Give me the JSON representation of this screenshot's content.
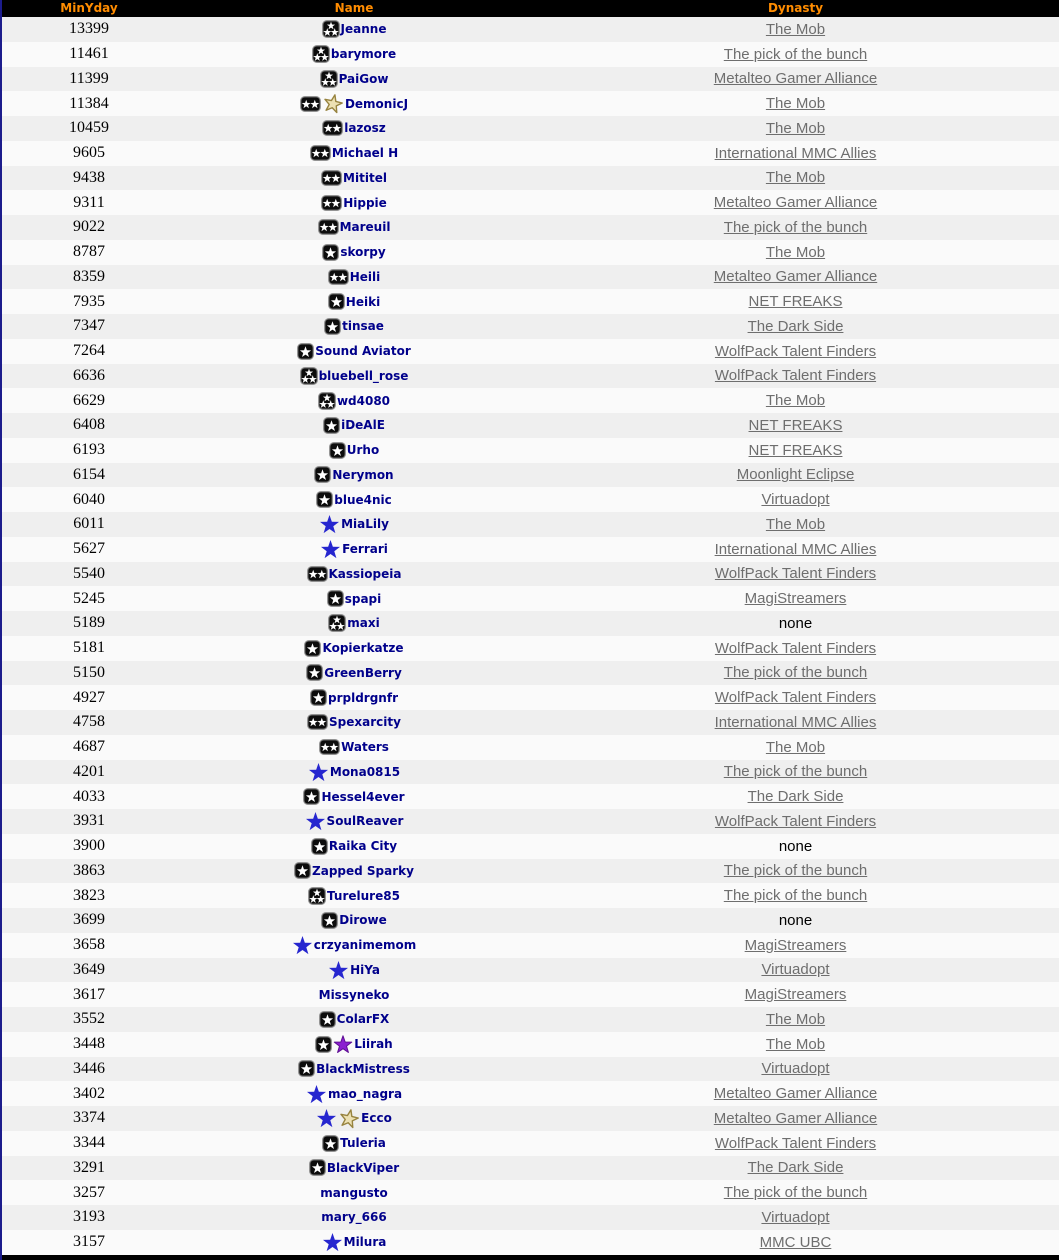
{
  "colors": {
    "page_border": "#1c1c8c",
    "header_bg": "#000000",
    "header_text": "#ff8c00",
    "row_odd": "#efefef",
    "row_even": "#fafafa",
    "name_link": "#00008b",
    "dynasty_link": "#6e6e6e",
    "none_text": "#000000",
    "badge_bg": "#0c0c0c",
    "badge_border": "#858585",
    "star_white": "#ffffff",
    "star_blue": "#2626cf",
    "star_gold_fill": "#ece0b2",
    "star_gold_stroke": "#97833f",
    "star_purple": "#8a1fd0"
  },
  "header": {
    "columns": [
      "MinYday",
      "Name",
      "Dynasty"
    ]
  },
  "rows": [
    {
      "minyday": "13399",
      "name": "Jeanne",
      "icons": [
        "badge-3-star"
      ],
      "dynasty": "The Mob",
      "dynasty_is_link": true
    },
    {
      "minyday": "11461",
      "name": "barymore",
      "icons": [
        "badge-3-star"
      ],
      "dynasty": "The pick of the bunch",
      "dynasty_is_link": true
    },
    {
      "minyday": "11399",
      "name": "PaiGow",
      "icons": [
        "badge-3-star"
      ],
      "dynasty": "Metalteo Gamer Alliance",
      "dynasty_is_link": true
    },
    {
      "minyday": "11384",
      "name": "DemonicJ",
      "icons": [
        "badge-2-star",
        "gold-star"
      ],
      "dynasty": "The Mob",
      "dynasty_is_link": true
    },
    {
      "minyday": "10459",
      "name": "lazosz",
      "icons": [
        "badge-2-star"
      ],
      "dynasty": "The Mob",
      "dynasty_is_link": true
    },
    {
      "minyday": "9605",
      "name": "Michael H",
      "icons": [
        "badge-2-star"
      ],
      "dynasty": "International MMC Allies",
      "dynasty_is_link": true
    },
    {
      "minyday": "9438",
      "name": "Mititel",
      "icons": [
        "badge-2-star"
      ],
      "dynasty": "The Mob",
      "dynasty_is_link": true
    },
    {
      "minyday": "9311",
      "name": "Hippie",
      "icons": [
        "badge-2-star"
      ],
      "dynasty": "Metalteo Gamer Alliance",
      "dynasty_is_link": true
    },
    {
      "minyday": "9022",
      "name": "Mareuil",
      "icons": [
        "badge-2-star"
      ],
      "dynasty": "The pick of the bunch",
      "dynasty_is_link": true
    },
    {
      "minyday": "8787",
      "name": "skorpy",
      "icons": [
        "badge-1-star"
      ],
      "dynasty": "The Mob",
      "dynasty_is_link": true
    },
    {
      "minyday": "8359",
      "name": "Heili",
      "icons": [
        "badge-2-star"
      ],
      "dynasty": "Metalteo Gamer Alliance",
      "dynasty_is_link": true
    },
    {
      "minyday": "7935",
      "name": "Heiki",
      "icons": [
        "badge-1-star"
      ],
      "dynasty": "NET FREAKS",
      "dynasty_is_link": true
    },
    {
      "minyday": "7347",
      "name": "tinsae",
      "icons": [
        "badge-1-star"
      ],
      "dynasty": "The Dark Side",
      "dynasty_is_link": true
    },
    {
      "minyday": "7264",
      "name": "Sound Aviator",
      "icons": [
        "badge-1-star"
      ],
      "dynasty": "WolfPack Talent Finders",
      "dynasty_is_link": true
    },
    {
      "minyday": "6636",
      "name": "bluebell_rose",
      "icons": [
        "badge-3-star"
      ],
      "dynasty": "WolfPack Talent Finders",
      "dynasty_is_link": true
    },
    {
      "minyday": "6629",
      "name": "wd4080",
      "icons": [
        "badge-3-star"
      ],
      "dynasty": "The Mob",
      "dynasty_is_link": true
    },
    {
      "minyday": "6408",
      "name": "iDeAlE",
      "icons": [
        "badge-1-star"
      ],
      "dynasty": "NET FREAKS",
      "dynasty_is_link": true
    },
    {
      "minyday": "6193",
      "name": "Urho",
      "icons": [
        "badge-1-star"
      ],
      "dynasty": "NET FREAKS",
      "dynasty_is_link": true
    },
    {
      "minyday": "6154",
      "name": "Nerymon",
      "icons": [
        "badge-1-star"
      ],
      "dynasty": "Moonlight Eclipse",
      "dynasty_is_link": true
    },
    {
      "minyday": "6040",
      "name": "blue4nic",
      "icons": [
        "badge-1-star"
      ],
      "dynasty": "Virtuadopt",
      "dynasty_is_link": true
    },
    {
      "minyday": "6011",
      "name": "MiaLily",
      "icons": [
        "blue-star"
      ],
      "dynasty": "The Mob",
      "dynasty_is_link": true
    },
    {
      "minyday": "5627",
      "name": "Ferrari",
      "icons": [
        "blue-star"
      ],
      "dynasty": "International MMC Allies",
      "dynasty_is_link": true
    },
    {
      "minyday": "5540",
      "name": "Kassiopeia",
      "icons": [
        "badge-2-star"
      ],
      "dynasty": "WolfPack Talent Finders",
      "dynasty_is_link": true
    },
    {
      "minyday": "5245",
      "name": "spapi",
      "icons": [
        "badge-1-star"
      ],
      "dynasty": "MagiStreamers",
      "dynasty_is_link": true
    },
    {
      "minyday": "5189",
      "name": "maxi",
      "icons": [
        "badge-3-star"
      ],
      "dynasty": "none",
      "dynasty_is_link": false
    },
    {
      "minyday": "5181",
      "name": "Kopierkatze",
      "icons": [
        "badge-1-star"
      ],
      "dynasty": "WolfPack Talent Finders",
      "dynasty_is_link": true
    },
    {
      "minyday": "5150",
      "name": "GreenBerry",
      "icons": [
        "badge-1-star"
      ],
      "dynasty": "The pick of the bunch",
      "dynasty_is_link": true
    },
    {
      "minyday": "4927",
      "name": "prpldrgnfr",
      "icons": [
        "badge-1-star"
      ],
      "dynasty": "WolfPack Talent Finders",
      "dynasty_is_link": true
    },
    {
      "minyday": "4758",
      "name": "Spexarcity",
      "icons": [
        "badge-2-star"
      ],
      "dynasty": "International MMC Allies",
      "dynasty_is_link": true
    },
    {
      "minyday": "4687",
      "name": "Waters",
      "icons": [
        "badge-2-star"
      ],
      "dynasty": "The Mob",
      "dynasty_is_link": true
    },
    {
      "minyday": "4201",
      "name": "Mona0815",
      "icons": [
        "blue-star"
      ],
      "dynasty": "The pick of the bunch",
      "dynasty_is_link": true
    },
    {
      "minyday": "4033",
      "name": "Hessel4ever",
      "icons": [
        "badge-1-star"
      ],
      "dynasty": "The Dark Side",
      "dynasty_is_link": true
    },
    {
      "minyday": "3931",
      "name": "SoulReaver",
      "icons": [
        "blue-star"
      ],
      "dynasty": "WolfPack Talent Finders",
      "dynasty_is_link": true
    },
    {
      "minyday": "3900",
      "name": "Raika City",
      "icons": [
        "badge-1-star"
      ],
      "dynasty": "none",
      "dynasty_is_link": false
    },
    {
      "minyday": "3863",
      "name": "Zapped Sparky",
      "icons": [
        "badge-1-star"
      ],
      "dynasty": "The pick of the bunch",
      "dynasty_is_link": true
    },
    {
      "minyday": "3823",
      "name": "Turelure85",
      "icons": [
        "badge-3-star"
      ],
      "dynasty": "The pick of the bunch",
      "dynasty_is_link": true
    },
    {
      "minyday": "3699",
      "name": "Dirowe",
      "icons": [
        "badge-1-star"
      ],
      "dynasty": "none",
      "dynasty_is_link": false
    },
    {
      "minyday": "3658",
      "name": "crzyanimemom",
      "icons": [
        "blue-star"
      ],
      "dynasty": "MagiStreamers",
      "dynasty_is_link": true
    },
    {
      "minyday": "3649",
      "name": "HiYa",
      "icons": [
        "blue-star"
      ],
      "dynasty": "Virtuadopt",
      "dynasty_is_link": true
    },
    {
      "minyday": "3617",
      "name": "Missyneko",
      "icons": [],
      "dynasty": "MagiStreamers",
      "dynasty_is_link": true
    },
    {
      "minyday": "3552",
      "name": "ColarFX",
      "icons": [
        "badge-1-star"
      ],
      "dynasty": "The Mob",
      "dynasty_is_link": true
    },
    {
      "minyday": "3448",
      "name": "Liirah",
      "icons": [
        "badge-1-star",
        "purple-star"
      ],
      "dynasty": "The Mob",
      "dynasty_is_link": true
    },
    {
      "minyday": "3446",
      "name": "BlackMistress",
      "icons": [
        "badge-1-star"
      ],
      "dynasty": "Virtuadopt",
      "dynasty_is_link": true
    },
    {
      "minyday": "3402",
      "name": "mao_nagra",
      "icons": [
        "blue-star"
      ],
      "dynasty": "Metalteo Gamer Alliance",
      "dynasty_is_link": true
    },
    {
      "minyday": "3374",
      "name": "Ecco",
      "icons": [
        "blue-star",
        "gold-star"
      ],
      "dynasty": "Metalteo Gamer Alliance",
      "dynasty_is_link": true
    },
    {
      "minyday": "3344",
      "name": "Tuleria",
      "icons": [
        "badge-1-star"
      ],
      "dynasty": "WolfPack Talent Finders",
      "dynasty_is_link": true
    },
    {
      "minyday": "3291",
      "name": "BlackViper",
      "icons": [
        "badge-1-star"
      ],
      "dynasty": "The Dark Side",
      "dynasty_is_link": true
    },
    {
      "minyday": "3257",
      "name": "mangusto",
      "icons": [],
      "dynasty": "The pick of the bunch",
      "dynasty_is_link": true
    },
    {
      "minyday": "3193",
      "name": "mary_666",
      "icons": [],
      "dynasty": "Virtuadopt",
      "dynasty_is_link": true
    },
    {
      "minyday": "3157",
      "name": "Milura",
      "icons": [
        "blue-star"
      ],
      "dynasty": "MMC UBC",
      "dynasty_is_link": true
    }
  ]
}
